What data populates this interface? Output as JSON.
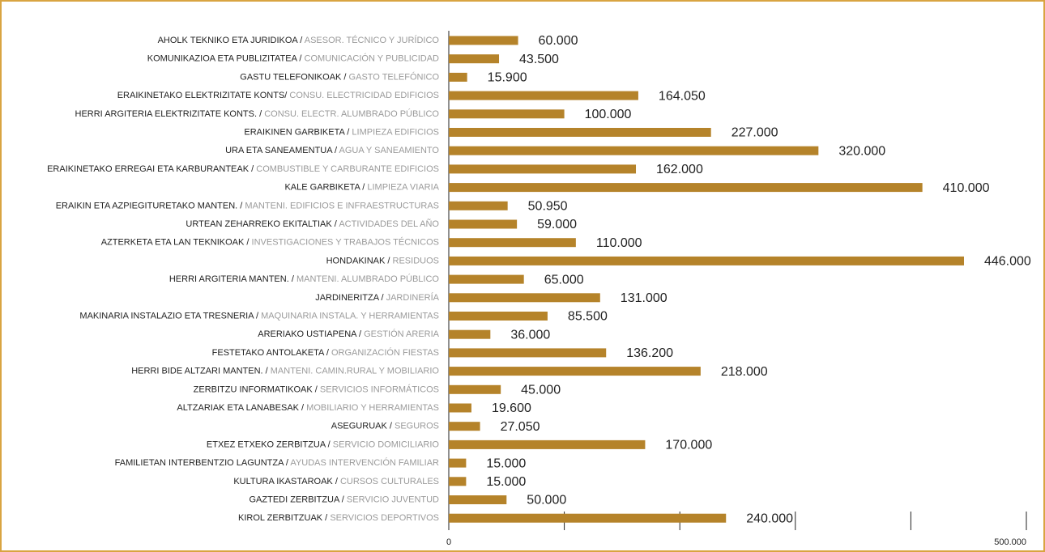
{
  "chart_data": {
    "type": "bar",
    "orientation": "horizontal",
    "categories": [
      [
        "AHOLK TEKNIKO ETA JURIDIKOA /",
        "ASESOR. TÉCNICO Y JURÍDICO"
      ],
      [
        "KOMUNIKAZIOA ETA PUBLIZITATEA /",
        "COMUNICACIÓN Y PUBLICIDAD"
      ],
      [
        "GASTU TELEFONIKOAK /",
        "GASTO TELEFÓNICO"
      ],
      [
        "ERAIKINETAKO ELEKTRIZITATE KONTS/",
        "CONSU. ELECTRICIDAD EDIFICIOS"
      ],
      [
        "HERRI ARGITERIA ELEKTRIZITATE KONTS. /",
        "CONSU. ELECTR. ALUMBRADO PÚBLICO"
      ],
      [
        "ERAIKINEN GARBIKETA /",
        "LIMPIEZA EDIFICIOS"
      ],
      [
        "URA ETA SANEAMENTUA /",
        "AGUA Y SANEAMIENTO"
      ],
      [
        "ERAIKINETAKO ERREGAI ETA KARBURANTEAK /",
        "COMBUSTIBLE Y CARBURANTE EDIFICIOS"
      ],
      [
        "KALE GARBIKETA /",
        "LIMPIEZA VIARIA"
      ],
      [
        "ERAIKIN ETA AZPIEGITURETAKO MANTEN. /",
        "MANTENI. EDIFICIOS E INFRAESTRUCTURAS"
      ],
      [
        "URTEAN ZEHARREKO EKITALTIAK /",
        "ACTIVIDADES DEL AÑO"
      ],
      [
        "AZTERKETA ETA LAN TEKNIKOAK /",
        "INVESTIGACIONES Y TRABAJOS TÉCNICOS"
      ],
      [
        "HONDAKINAK /",
        "RESIDUOS"
      ],
      [
        "HERRI ARGITERIA MANTEN. /",
        "MANTENI. ALUMBRADO PÚBLICO"
      ],
      [
        "JARDINERITZA /",
        "JARDINERÍA"
      ],
      [
        "MAKINARIA INSTALAZIO ETA TRESNERIA /",
        "MAQUINARIA INSTALA. Y HERRAMIENTAS"
      ],
      [
        "ARERIAKO USTIAPENA /",
        "GESTIÓN ARERIA"
      ],
      [
        "FESTETAKO ANTOLAKETA /",
        "ORGANIZACIÓN FIESTAS"
      ],
      [
        "HERRI BIDE ALTZARI MANTEN. /",
        "MANTENI. CAMIN.RURAL Y MOBILIARIO"
      ],
      [
        "ZERBITZU INFORMATIKOAK /",
        "SERVICIOS INFORMÁTICOS"
      ],
      [
        "ALTZARIAK ETA LANABESAK /",
        "MOBILIARIO Y HERRAMIENTAS"
      ],
      [
        "ASEGURUAK /",
        "SEGUROS"
      ],
      [
        "ETXEZ ETXEKO ZERBITZUA /",
        "SERVICIO DOMICILIARIO"
      ],
      [
        "FAMILIETAN INTERBENTZIO LAGUNTZA /",
        "AYUDAS INTERVENCIÓN FAMILIAR"
      ],
      [
        "KULTURA IKASTAROAK /",
        "CURSOS CULTURALES"
      ],
      [
        "GAZTEDI ZERBITZUA /",
        "SERVICIO JUVENTUD"
      ],
      [
        "KIROL ZERBITZUAK /",
        "SERVICIOS DEPORTIVOS"
      ]
    ],
    "values": [
      60000,
      43500,
      15900,
      164050,
      100000,
      227000,
      320000,
      162000,
      410000,
      50950,
      59000,
      110000,
      446000,
      65000,
      131000,
      85500,
      36000,
      136200,
      218000,
      45000,
      19600,
      27050,
      170000,
      15000,
      15000,
      50000,
      240000
    ],
    "value_labels": [
      "60.000",
      "43.500",
      "15.900",
      "164.050",
      "100.000",
      "227.000",
      "320.000",
      "162.000",
      "410.000",
      "50.950",
      "59.000",
      "110.000",
      "446.000",
      "65.000",
      "131.000",
      "85.500",
      "36.000",
      "136.200",
      "218.000",
      "45.000",
      "19.600",
      "27.050",
      "170.000",
      "15.000",
      "15.000",
      "50.000",
      "240.000"
    ],
    "color": "#b5832a",
    "xlim": [
      0,
      500000
    ],
    "xticks": [
      0,
      {
        "value": 500000,
        "label": "500.000"
      }
    ],
    "minor_xticks": [
      100000,
      200000,
      300000,
      400000
    ]
  }
}
